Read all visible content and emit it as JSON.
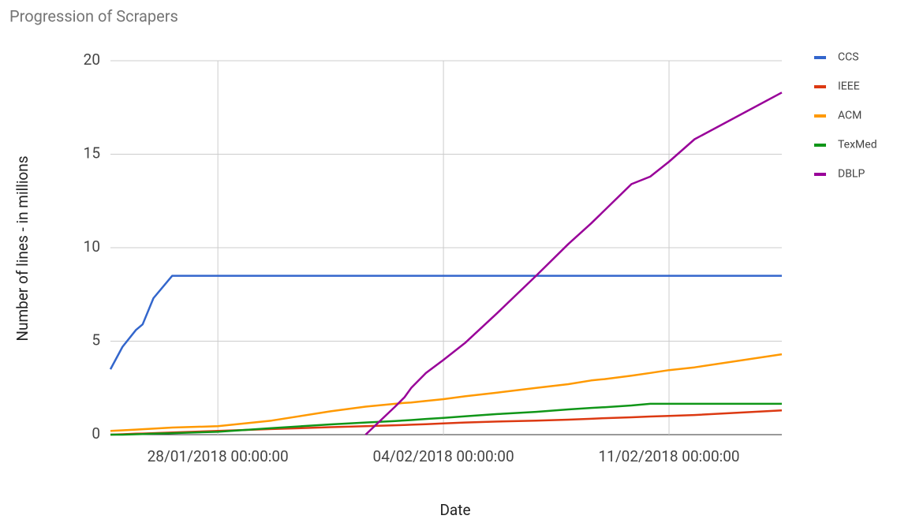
{
  "chart_data": {
    "type": "line",
    "title": "Progression of Scrapers",
    "x_label": "Date",
    "y_label": "Number of lines - in millions",
    "x": [
      "24/01/2018 16:00:00",
      "25/01/2018 01:00:00",
      "25/01/2018 11:00:00",
      "25/01/2018 16:00:00",
      "26/01/2018 00:00:00",
      "26/01/2018 14:00:00",
      "28/01/2018 00:00:00",
      "29/01/2018 16:00:00",
      "31/01/2018 12:00:00",
      "01/02/2018 14:00:00",
      "02/02/2018 12:00:00",
      "02/02/2018 19:00:00",
      "03/02/2018 00:00:00",
      "03/02/2018 11:00:00",
      "04/02/2018 00:00:00",
      "04/02/2018 16:00:00",
      "05/02/2018 16:00:00",
      "06/02/2018 21:00:00",
      "07/02/2018 21:00:00",
      "08/02/2018 14:00:00",
      "09/02/2018 00:00:00",
      "09/02/2018 20:00:00",
      "10/02/2018 10:00:00",
      "11/02/2018 00:00:00",
      "11/02/2018 19:00:00",
      "14/02/2018 12:00:00"
    ],
    "series": [
      {
        "name": "CCS",
        "color": "#3366cc",
        "values": [
          3.5,
          4.7,
          5.6,
          5.9,
          7.3,
          8.5,
          8.5,
          8.5,
          8.5,
          8.5,
          8.5,
          8.5,
          8.5,
          8.5,
          8.5,
          8.5,
          8.5,
          8.5,
          8.5,
          8.5,
          8.5,
          8.5,
          8.5,
          8.5,
          8.5,
          8.5
        ]
      },
      {
        "name": "IEEE",
        "color": "#dc3912",
        "values": [
          0,
          0.02,
          0.05,
          0.06,
          0.08,
          0.12,
          0.2,
          0.3,
          0.4,
          0.45,
          0.5,
          0.52,
          0.53,
          0.56,
          0.6,
          0.65,
          0.7,
          0.75,
          0.8,
          0.85,
          0.88,
          0.93,
          0.97,
          1,
          1.05,
          1.3
        ]
      },
      {
        "name": "ACM",
        "color": "#ff9900",
        "values": [
          0.2,
          0.23,
          0.27,
          0.29,
          0.32,
          0.38,
          0.45,
          0.75,
          1.25,
          1.5,
          1.65,
          1.7,
          1.72,
          1.8,
          1.9,
          2.05,
          2.25,
          2.5,
          2.7,
          2.9,
          2.97,
          3.15,
          3.3,
          3.45,
          3.6,
          4.3
        ]
      },
      {
        "name": "TexMed",
        "color": "#109618",
        "values": [
          0,
          0,
          0.02,
          0.03,
          0.05,
          0.08,
          0.15,
          0.35,
          0.55,
          0.65,
          0.73,
          0.76,
          0.78,
          0.84,
          0.9,
          0.98,
          1.1,
          1.22,
          1.35,
          1.43,
          1.47,
          1.56,
          1.65,
          1.65,
          1.65,
          1.65
        ]
      },
      {
        "name": "DBLP",
        "color": "#990099",
        "values": [
          null,
          null,
          null,
          null,
          null,
          null,
          null,
          null,
          null,
          0,
          1.5,
          2,
          2.5,
          3.3,
          4,
          4.9,
          6.5,
          8.5,
          10.2,
          11.3,
          12,
          13.4,
          13.8,
          14.6,
          15.8,
          18.3
        ]
      }
    ],
    "xlim": [
      "24/01/2018 16:00:00",
      "14/02/2018 12:00:00"
    ],
    "xticks": [
      "28/01/2018 00:00:00",
      "04/02/2018 00:00:00",
      "11/02/2018 00:00:00"
    ],
    "ylim": [
      0,
      20
    ],
    "yticks": [
      0,
      5,
      10,
      15,
      20
    ],
    "grid": true,
    "legend": "right"
  }
}
